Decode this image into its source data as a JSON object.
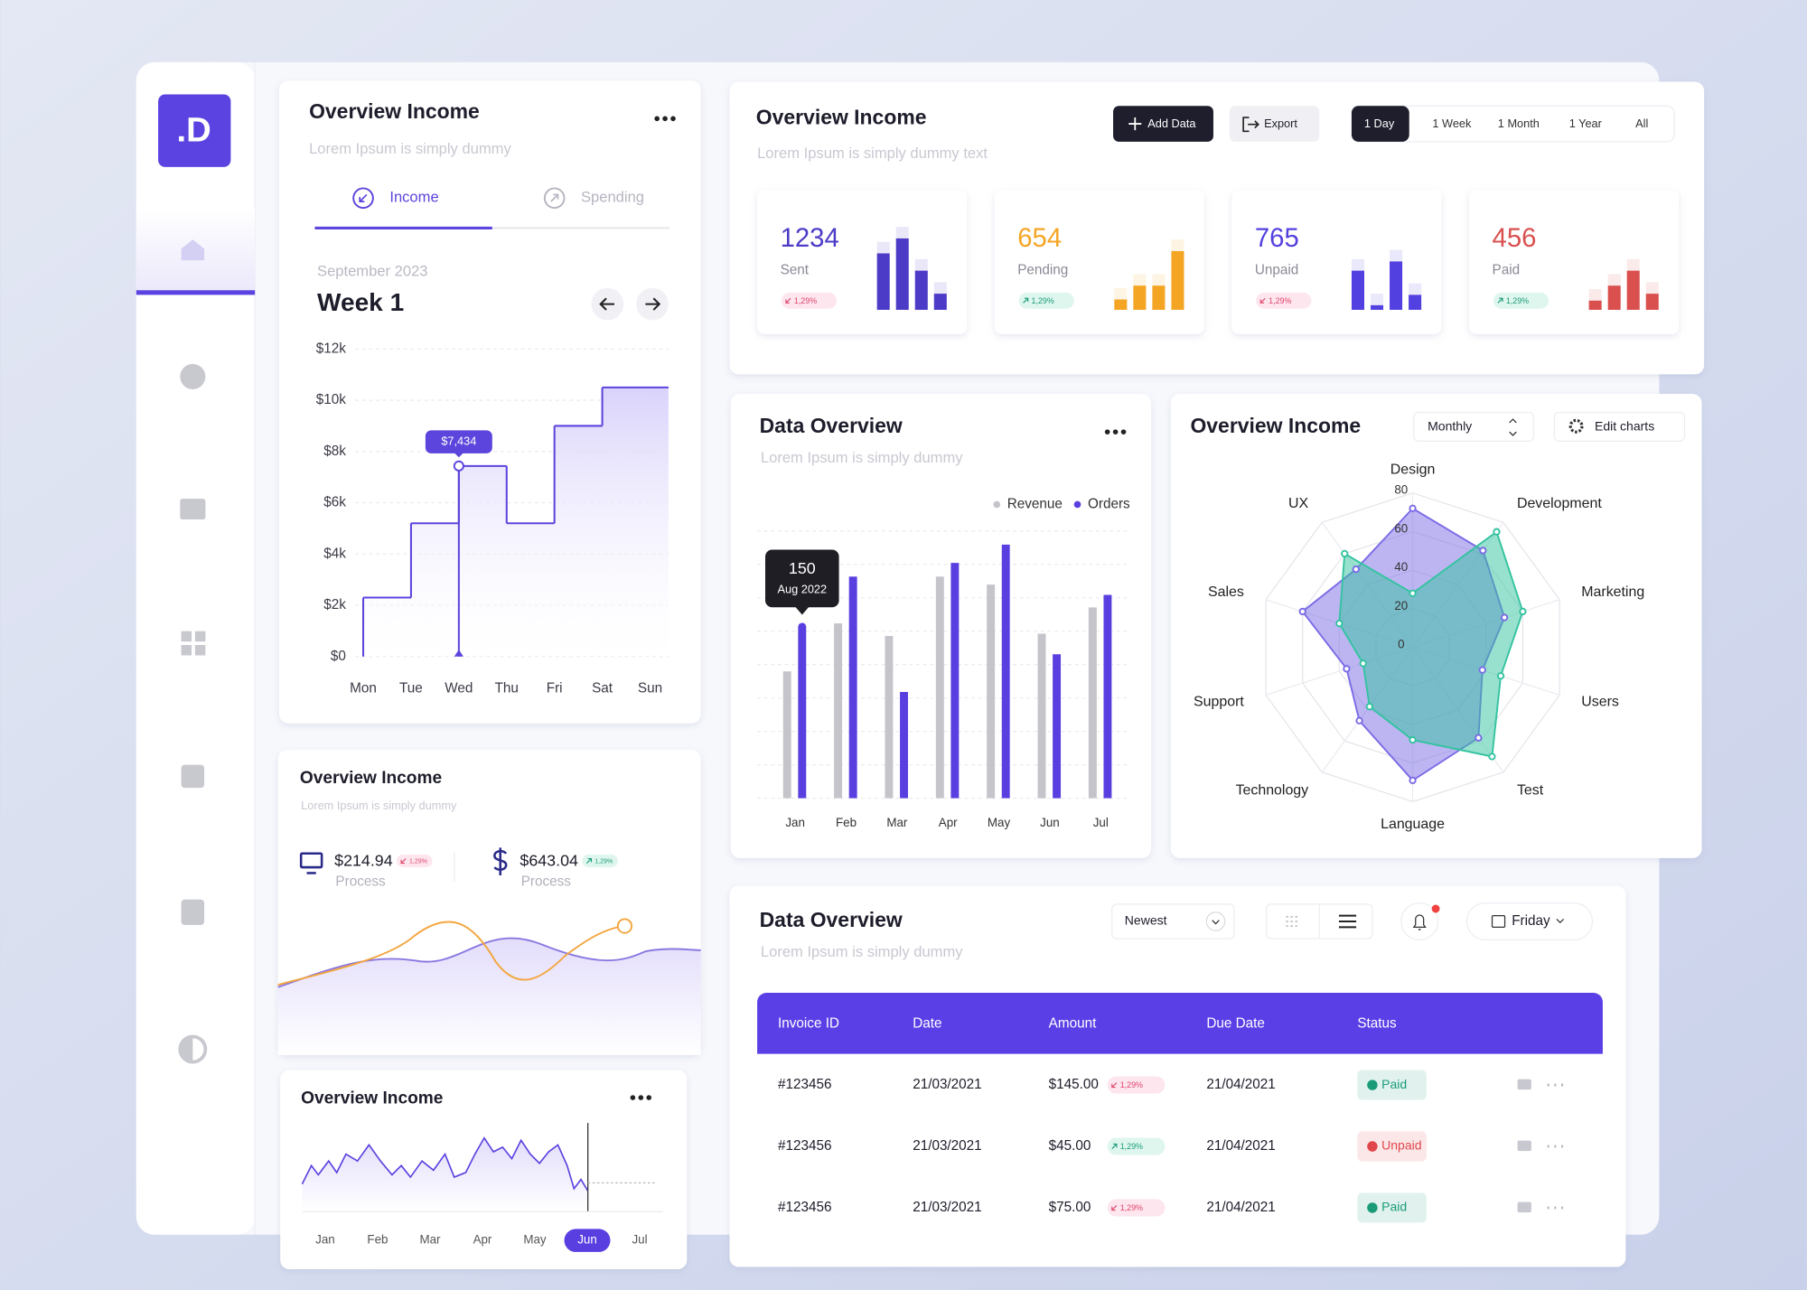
{
  "logo": ".D",
  "week_panel": {
    "title": "Overview Income",
    "subtitle": "Lorem Ipsum is simply dummy",
    "tabs": [
      {
        "label": "Income",
        "active": true
      },
      {
        "label": "Spending",
        "active": false
      }
    ],
    "period": "September 2023",
    "week": "Week 1",
    "chart": {
      "type": "line",
      "step": true,
      "categories": [
        "Mon",
        "Tue",
        "Wed",
        "Thu",
        "Fri",
        "Sat",
        "Sun"
      ],
      "values": [
        2300,
        5200,
        7434,
        5200,
        9000,
        10500,
        10500
      ],
      "value_labels": [
        null,
        null,
        "$7,434",
        null,
        null,
        null,
        null
      ],
      "color": "#5b45dc",
      "ylim": [
        0,
        12000
      ],
      "yticks": [
        {
          "value": 0,
          "label": "$0"
        },
        {
          "value": 2000,
          "label": "$2k"
        },
        {
          "value": 4000,
          "label": "$4k"
        },
        {
          "value": 6000,
          "label": "$6k"
        },
        {
          "value": 8000,
          "label": "$8k"
        },
        {
          "value": 10000,
          "label": "$10k"
        },
        {
          "value": 12000,
          "label": "$12k"
        }
      ],
      "grid": true
    }
  },
  "process_panel": {
    "title": "Overview Income",
    "subtitle": "Lorem Ipsum is simply dummy",
    "items": [
      {
        "amount": "$214.94",
        "change": "1,29%",
        "trend": "down",
        "label": "Process"
      },
      {
        "amount": "$643.04",
        "change": "1,29%",
        "trend": "up",
        "label": "Process"
      }
    ]
  },
  "summary_panel": {
    "title": "Overview Income",
    "subtitle": "Lorem Ipsum is simply dummy text",
    "buttons": [
      "Add Data",
      "Export"
    ],
    "ranges": [
      {
        "label": "1 Day",
        "active": true
      },
      {
        "label": "1 Week",
        "active": false
      },
      {
        "label": "1 Month",
        "active": false
      },
      {
        "label": "1 Year",
        "active": false
      },
      {
        "label": "All",
        "active": false
      }
    ],
    "cards": [
      {
        "value": 1234,
        "label": "Sent",
        "change": "1,29%",
        "trend": "down",
        "color": "#4b3bc7",
        "bars": [
          49,
          62,
          34,
          14
        ]
      },
      {
        "value": 654,
        "label": "Pending",
        "change": "1,29%",
        "trend": "up",
        "color": "#f5a524",
        "bars": [
          9,
          21,
          21,
          51
        ]
      },
      {
        "value": 765,
        "label": "Unpaid",
        "change": "1,29%",
        "trend": "down",
        "color": "#5340e0",
        "bars": [
          34,
          4,
          42,
          13
        ]
      },
      {
        "value": 456,
        "label": "Paid",
        "change": "1,29%",
        "trend": "up",
        "color": "#d9504f",
        "bars": [
          8,
          21,
          34,
          14
        ]
      }
    ]
  },
  "data_panel": {
    "title": "Data Overview",
    "subtitle": "Lorem Ipsum is simply dummy",
    "chart": {
      "type": "bar",
      "categories": [
        "Jan",
        "Feb",
        "Mar",
        "Apr",
        "May",
        "Jun",
        "Jul"
      ],
      "series": [
        {
          "name": "Revenue",
          "color": "#c4c4ca",
          "values": [
            111,
            153,
            142,
            194,
            187,
            144,
            167
          ]
        },
        {
          "name": "Orders",
          "color": "#5a3fe0",
          "values": [
            150,
            194,
            93,
            206,
            222,
            126,
            178
          ],
          "value_labels": [
            "150",
            null,
            null,
            null,
            null,
            null,
            null
          ]
        }
      ],
      "tooltip_date": "Aug 2022",
      "ylim": [
        0,
        240
      ],
      "grid": true,
      "legend": "top-right"
    }
  },
  "radar_panel": {
    "title": "Overview Income",
    "period": "Monthly",
    "action": "Edit charts",
    "chart": {
      "type": "radar",
      "categories": [
        "Design",
        "Development",
        "Marketing",
        "Users",
        "Test",
        "Language",
        "Technology",
        "Support",
        "Sales",
        "UX"
      ],
      "rlim": [
        0,
        80
      ],
      "rticks": [
        0,
        20,
        40,
        60,
        80
      ],
      "series": [
        {
          "color": "#7a6be6",
          "values": [
            72,
            62,
            50,
            38,
            58,
            69,
            47,
            36,
            60,
            50
          ]
        },
        {
          "color": "#34c3a0",
          "values": [
            28,
            74,
            60,
            48,
            70,
            48,
            38,
            27,
            40,
            60
          ]
        }
      ]
    }
  },
  "table_panel": {
    "title": "Data Overview",
    "subtitle": "Lorem Ipsum is simply dummy",
    "sort": "Newest",
    "day": "Friday",
    "columns": [
      "Invoice ID",
      "Date",
      "Amount",
      "Due Date",
      "Status"
    ],
    "rows": [
      {
        "invoice": "#123456",
        "date": "21/03/2021",
        "amount": "$145.00",
        "change": "1,29%",
        "trend": "down",
        "due": "21/04/2021",
        "status": "Paid",
        "status_color": "#1a9c78"
      },
      {
        "invoice": "#123456",
        "date": "21/03/2021",
        "amount": "$45.00",
        "change": "1,29%",
        "trend": "up",
        "due": "21/04/2021",
        "status": "Unpaid",
        "status_color": "#e0474c"
      },
      {
        "invoice": "#123456",
        "date": "21/03/2021",
        "amount": "$75.00",
        "change": "1,29%",
        "trend": "down",
        "due": "21/04/2021",
        "status": "Paid",
        "status_color": "#1a9c78"
      }
    ]
  },
  "trend_panel": {
    "title": "Overview Income",
    "months": [
      {
        "label": "Jan",
        "active": false
      },
      {
        "label": "Feb",
        "active": false
      },
      {
        "label": "Mar",
        "active": false
      },
      {
        "label": "Apr",
        "active": false
      },
      {
        "label": "May",
        "active": false
      },
      {
        "label": "Jun",
        "active": true
      },
      {
        "label": "Jul",
        "active": false
      }
    ]
  }
}
